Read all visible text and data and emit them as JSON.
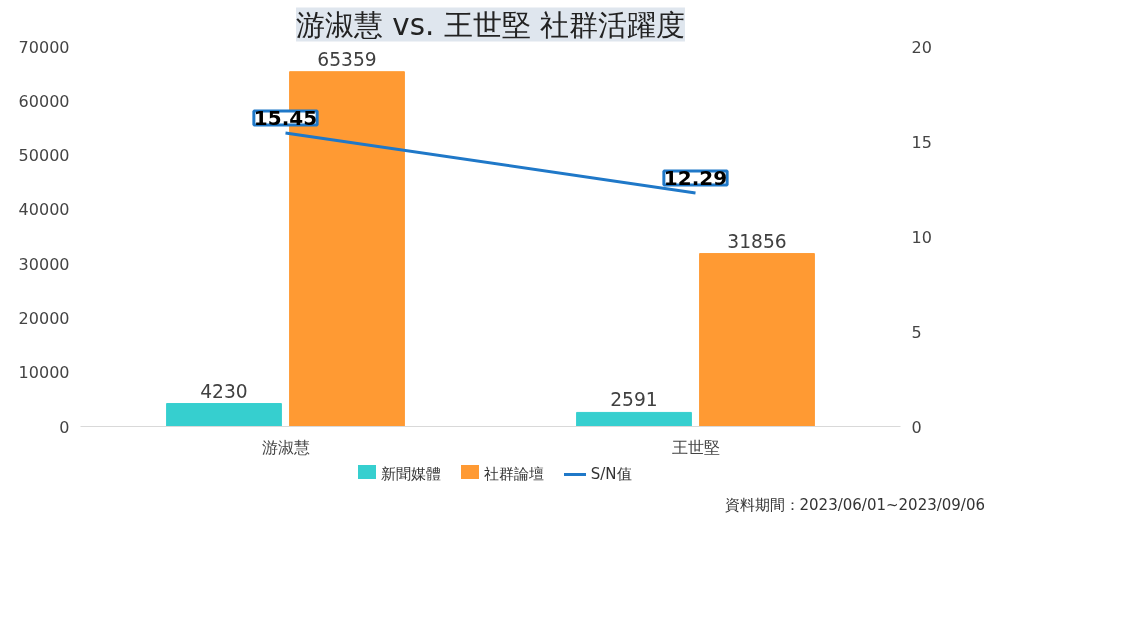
{
  "chart_data": {
    "type": "bar",
    "title": "游淑慧 vs. 王世堅 社群活躍度",
    "categories": [
      "游淑慧",
      "王世堅"
    ],
    "series": [
      {
        "name": "新聞媒體",
        "color": "#36cfcf",
        "values": [
          4230,
          2591
        ]
      },
      {
        "name": "社群論壇",
        "color": "#ff9a33",
        "values": [
          65359,
          31856
        ]
      },
      {
        "name": "S/N值",
        "type": "line",
        "axis": "y2",
        "color": "#1f78c8",
        "values": [
          15.45,
          12.29
        ]
      }
    ],
    "ylim": [
      0,
      70000
    ],
    "yticks": [
      0,
      10000,
      20000,
      30000,
      40000,
      50000,
      60000,
      70000
    ],
    "y2lim": [
      0,
      20
    ],
    "y2ticks": [
      0,
      5,
      10,
      15,
      20
    ],
    "data_labels": true,
    "legend": "bottom",
    "annotations": [
      "資料期間：2023/06/01~2023/09/06"
    ]
  }
}
